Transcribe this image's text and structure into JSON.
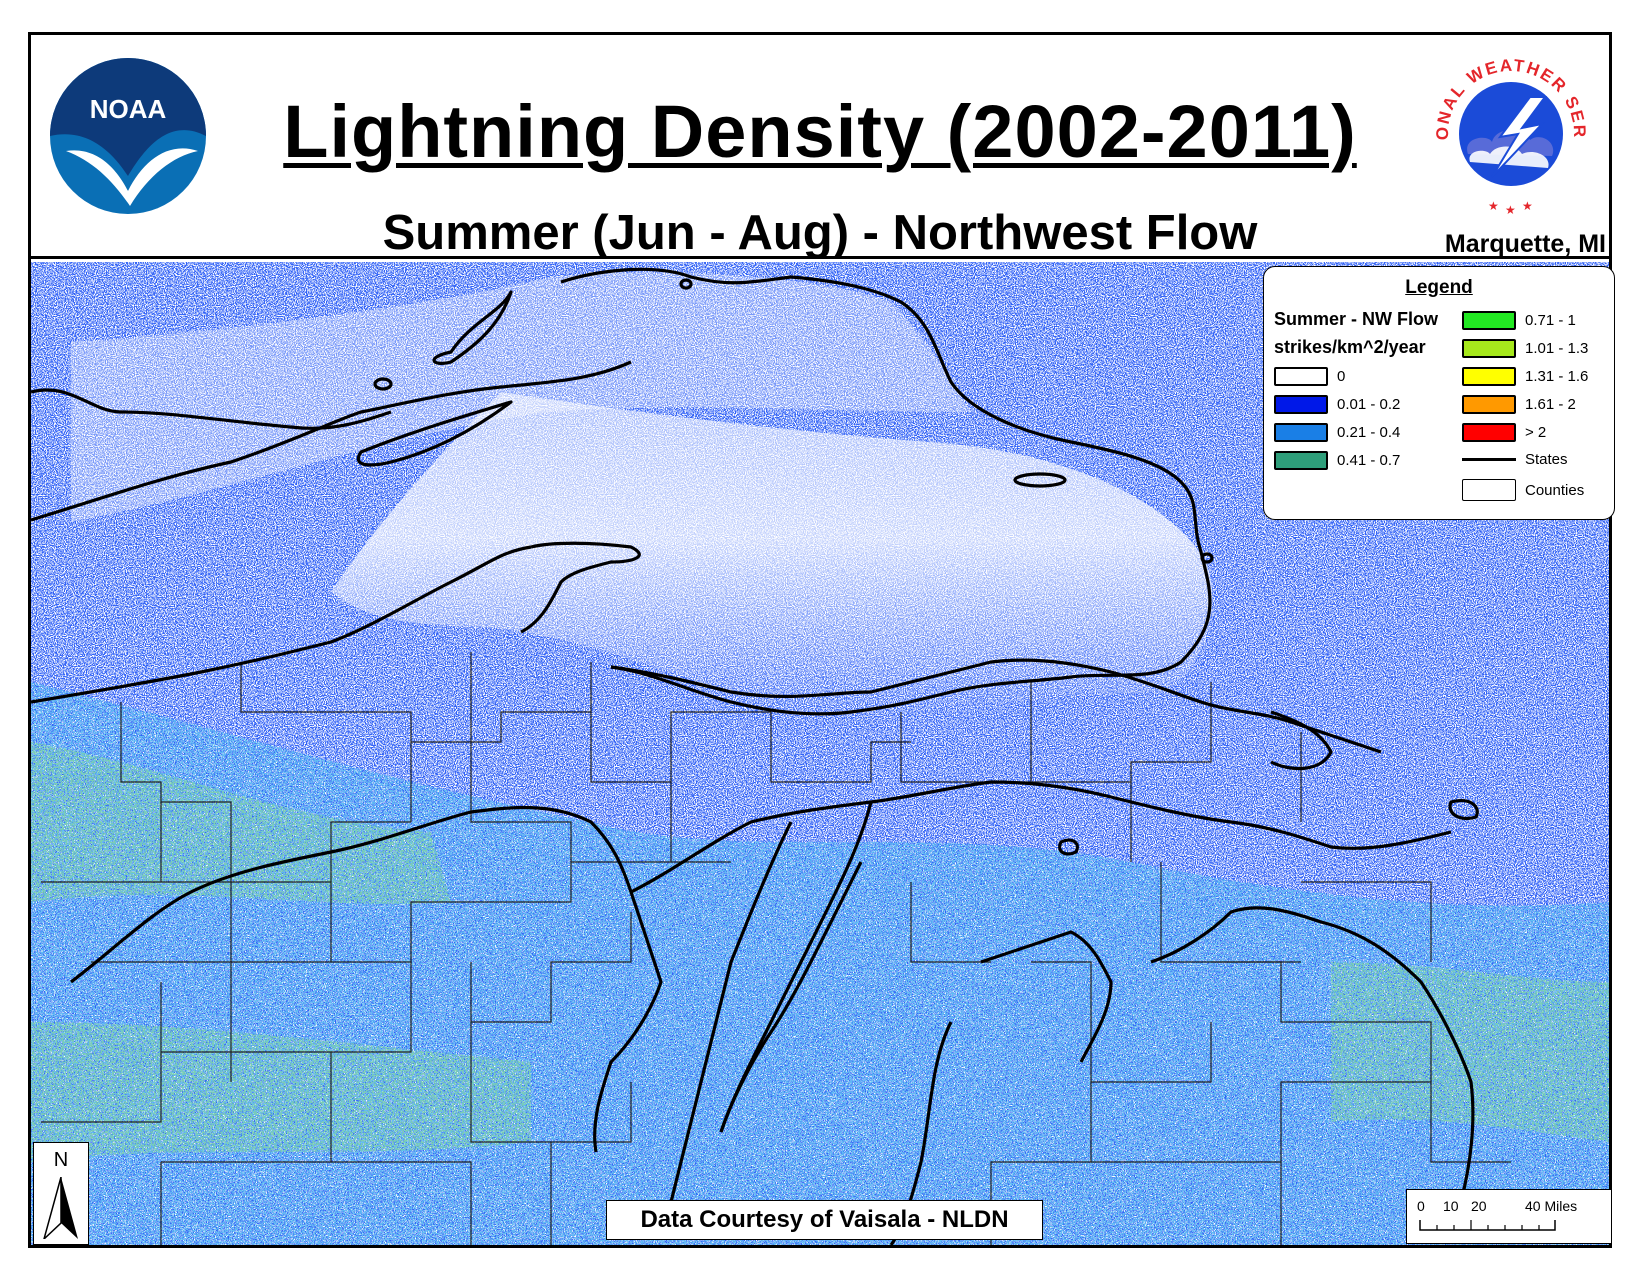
{
  "header": {
    "title": "Lightning Density (2002-2011)",
    "subtitle": "Summer (Jun - Aug) - Northwest Flow",
    "office": "Marquette, MI"
  },
  "logos": {
    "noaa": {
      "text": "NOAA",
      "icon": "noaa-logo"
    },
    "nws": {
      "text": "NATIONAL WEATHER SERVICE",
      "icon": "nws-logo"
    }
  },
  "legend": {
    "title": "Legend",
    "series": "Summer - NW Flow",
    "units": "strikes/km^2/year",
    "classes": [
      {
        "label": "0",
        "color": "#ffffff"
      },
      {
        "label": "0.01 - 0.2",
        "color": "#0018e8"
      },
      {
        "label": "0.21 - 0.4",
        "color": "#1a7fe6"
      },
      {
        "label": "0.41 - 0.7",
        "color": "#2e9e7a"
      },
      {
        "label": "0.71 - 1",
        "color": "#22e822"
      },
      {
        "label": "1.01 - 1.3",
        "color": "#a6e81c"
      },
      {
        "label": "1.31 - 1.6",
        "color": "#ffff00"
      },
      {
        "label": "1.61 - 2",
        "color": "#ff9900"
      },
      {
        "label": "> 2",
        "color": "#ff0000"
      }
    ],
    "states": "States",
    "counties": "Counties"
  },
  "north_arrow": {
    "label": "N"
  },
  "credit": "Data Courtesy of Vaisala - NLDN",
  "scale_bar": {
    "ticks": [
      "0",
      "10",
      "20",
      "40 Miles"
    ]
  }
}
